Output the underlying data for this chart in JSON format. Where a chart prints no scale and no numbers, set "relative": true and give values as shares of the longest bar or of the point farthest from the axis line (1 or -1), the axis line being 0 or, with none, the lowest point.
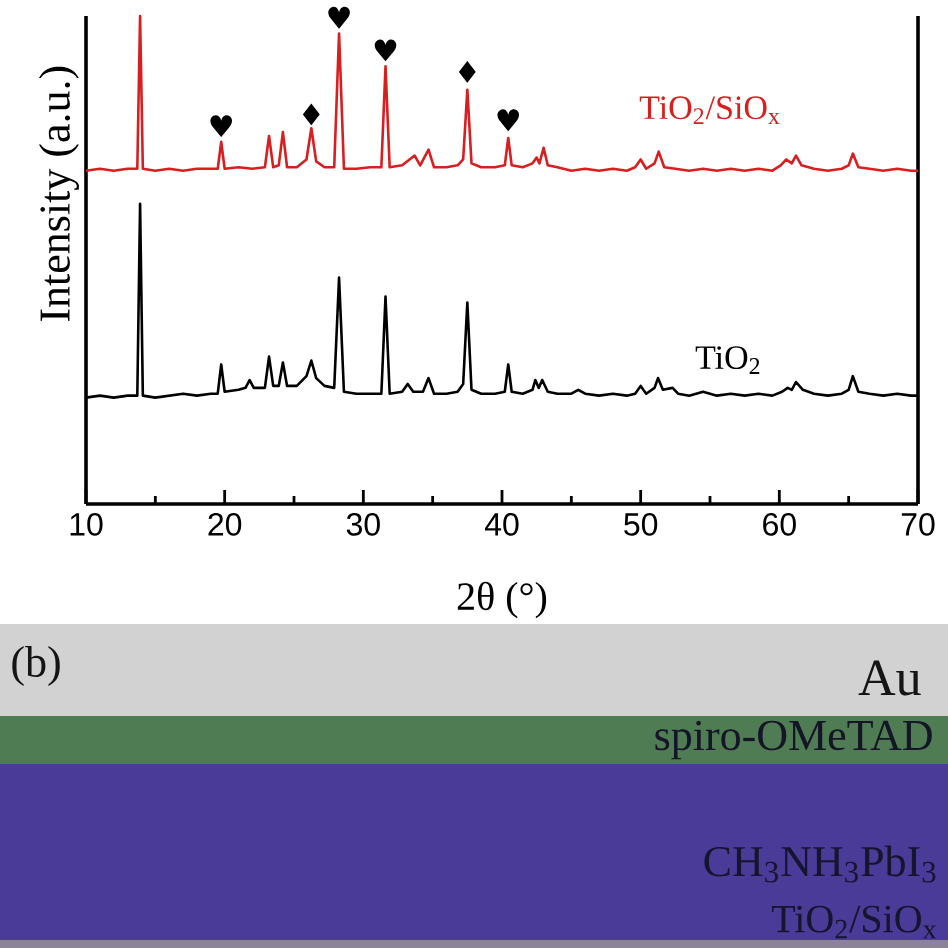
{
  "chart_data": [
    {
      "type": "line",
      "xlabel": "2θ (°)",
      "ylabel": "Intensity (a.u.)",
      "relative": true,
      "line_style": "solid",
      "xlim": [
        10,
        70
      ],
      "xticks": [
        10,
        {
          "value": 15,
          "label": null
        },
        20,
        {
          "value": 25,
          "label": null
        },
        30,
        {
          "value": 35,
          "label": null
        },
        40,
        {
          "value": 45,
          "label": null
        },
        50,
        {
          "value": 55,
          "label": null
        },
        60,
        {
          "value": 65,
          "label": null
        },
        70
      ],
      "series": [
        {
          "name": "TiO$_{2}$/SiO$_{x}$",
          "color": "#d81e1e",
          "x": [
            10.0,
            11.0,
            12.0,
            13.0,
            13.7,
            13.9,
            14.1,
            15.0,
            16.0,
            17.0,
            18.0,
            19.0,
            19.5,
            19.75,
            20.0,
            21.0,
            22.0,
            22.9,
            23.2,
            23.5,
            23.9,
            24.2,
            24.5,
            25.2,
            25.9,
            26.25,
            26.6,
            27.2,
            27.9,
            28.25,
            28.6,
            29.5,
            30.5,
            31.3,
            31.6,
            31.9,
            32.8,
            33.7,
            34.1,
            34.7,
            35.1,
            36.0,
            36.8,
            37.2,
            37.5,
            37.8,
            38.5,
            39.5,
            40.2,
            40.45,
            40.7,
            41.5,
            42.2,
            42.5,
            42.7,
            43.0,
            43.3,
            44.0,
            45.0,
            46.0,
            47.0,
            48.0,
            49.0,
            49.6,
            50.0,
            50.4,
            51.0,
            51.3,
            51.7,
            52.5,
            53.5,
            54.5,
            55.5,
            56.5,
            57.5,
            58.5,
            59.5,
            60.1,
            60.5,
            60.9,
            61.2,
            61.6,
            62.5,
            63.5,
            64.5,
            65.0,
            65.3,
            65.7,
            66.5,
            67.5,
            68.5,
            69.5,
            70.0
          ],
          "values": [
            0.683,
            0.687,
            0.683,
            0.687,
            0.687,
            1.0,
            0.687,
            0.683,
            0.687,
            0.683,
            0.687,
            0.687,
            0.687,
            0.742,
            0.687,
            0.69,
            0.687,
            0.69,
            0.754,
            0.69,
            0.694,
            0.762,
            0.69,
            0.69,
            0.706,
            0.77,
            0.702,
            0.69,
            0.69,
            0.964,
            0.687,
            0.687,
            0.69,
            0.69,
            0.897,
            0.69,
            0.694,
            0.714,
            0.694,
            0.726,
            0.69,
            0.69,
            0.694,
            0.706,
            0.849,
            0.698,
            0.69,
            0.69,
            0.694,
            0.75,
            0.694,
            0.69,
            0.698,
            0.71,
            0.698,
            0.73,
            0.694,
            0.69,
            0.683,
            0.687,
            0.683,
            0.687,
            0.683,
            0.69,
            0.706,
            0.687,
            0.698,
            0.722,
            0.69,
            0.687,
            0.683,
            0.687,
            0.683,
            0.687,
            0.683,
            0.687,
            0.683,
            0.694,
            0.706,
            0.698,
            0.714,
            0.694,
            0.687,
            0.683,
            0.687,
            0.694,
            0.718,
            0.69,
            0.687,
            0.683,
            0.687,
            0.683,
            0.683
          ]
        },
        {
          "name": "TiO$_{2}$",
          "color": "#000000",
          "x": [
            10.0,
            11.0,
            12.0,
            13.0,
            13.7,
            13.9,
            14.1,
            15.0,
            16.0,
            17.0,
            18.0,
            19.0,
            19.5,
            19.75,
            20.0,
            21.0,
            21.5,
            21.8,
            22.1,
            22.9,
            23.2,
            23.5,
            23.9,
            24.2,
            24.5,
            25.2,
            25.9,
            26.25,
            26.6,
            27.2,
            27.9,
            28.25,
            28.6,
            29.5,
            30.5,
            31.3,
            31.6,
            31.9,
            32.8,
            33.2,
            33.6,
            34.3,
            34.7,
            35.1,
            36.0,
            36.8,
            37.2,
            37.5,
            37.8,
            38.5,
            39.5,
            40.2,
            40.45,
            40.7,
            41.5,
            42.2,
            42.4,
            42.65,
            42.9,
            43.3,
            44.0,
            45.0,
            45.5,
            46.0,
            47.0,
            48.0,
            49.0,
            49.6,
            50.0,
            50.4,
            51.0,
            51.25,
            51.6,
            52.3,
            52.7,
            53.5,
            54.5,
            55.5,
            56.5,
            57.5,
            58.5,
            59.5,
            60.2,
            60.6,
            60.9,
            61.2,
            61.7,
            62.5,
            63.5,
            64.5,
            65.0,
            65.3,
            65.7,
            66.5,
            67.5,
            68.5,
            69.5,
            70.0
          ],
          "values": [
            0.218,
            0.222,
            0.218,
            0.222,
            0.222,
            0.615,
            0.222,
            0.218,
            0.222,
            0.226,
            0.222,
            0.226,
            0.226,
            0.286,
            0.23,
            0.234,
            0.238,
            0.254,
            0.238,
            0.238,
            0.302,
            0.242,
            0.242,
            0.29,
            0.242,
            0.242,
            0.262,
            0.294,
            0.258,
            0.242,
            0.238,
            0.464,
            0.23,
            0.226,
            0.226,
            0.226,
            0.425,
            0.226,
            0.23,
            0.246,
            0.23,
            0.23,
            0.258,
            0.226,
            0.226,
            0.23,
            0.246,
            0.413,
            0.234,
            0.226,
            0.226,
            0.23,
            0.286,
            0.23,
            0.226,
            0.234,
            0.254,
            0.238,
            0.254,
            0.23,
            0.226,
            0.226,
            0.234,
            0.226,
            0.222,
            0.226,
            0.222,
            0.226,
            0.242,
            0.226,
            0.238,
            0.258,
            0.234,
            0.238,
            0.226,
            0.222,
            0.23,
            0.222,
            0.226,
            0.222,
            0.226,
            0.222,
            0.23,
            0.238,
            0.234,
            0.25,
            0.234,
            0.226,
            0.222,
            0.226,
            0.234,
            0.262,
            0.23,
            0.226,
            0.222,
            0.226,
            0.222,
            0.222
          ]
        }
      ],
      "annotations": [
        {
          "text": "♥",
          "x": 19.75,
          "y": 0.75
        },
        {
          "text": "♦",
          "x": 26.25,
          "y": 0.774
        },
        {
          "text": "♥",
          "x": 28.25,
          "y": 0.972
        },
        {
          "text": "♥",
          "x": 31.6,
          "y": 0.905
        },
        {
          "text": "♦",
          "x": 37.5,
          "y": 0.861
        },
        {
          "text": "♥",
          "x": 40.45,
          "y": 0.762
        }
      ]
    },
    {
      "type": "other",
      "annotations": [
        "(b)",
        "Au",
        "spiro-OMeTAD",
        "CH$_{3}$NH$_{3}$PbI$_{3}$",
        "TiO$_{2}$/SiO$_{x}$"
      ]
    }
  ]
}
